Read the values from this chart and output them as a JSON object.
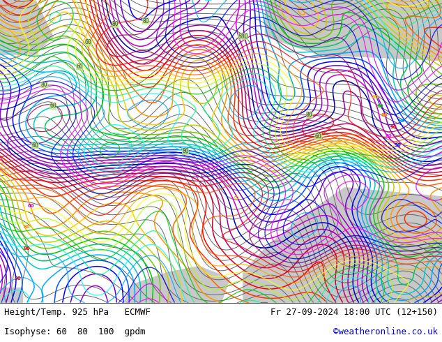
{
  "title_left": "Height/Temp. 925 hPa   ECMWF",
  "title_right": "Fr 27-09-2024 18:00 UTC (12+150)",
  "subtitle_left": "Isophyse: 60  80  100  gpdm",
  "credit": "©weatheronline.co.uk",
  "bg_land_color": "#b5e878",
  "bg_sea_color": "#c8c8c8",
  "text_color": "#000000",
  "credit_color": "#0000cc",
  "fig_width": 6.34,
  "fig_height": 4.9,
  "dpi": 100,
  "title_fontsize": 9,
  "subtitle_fontsize": 9
}
